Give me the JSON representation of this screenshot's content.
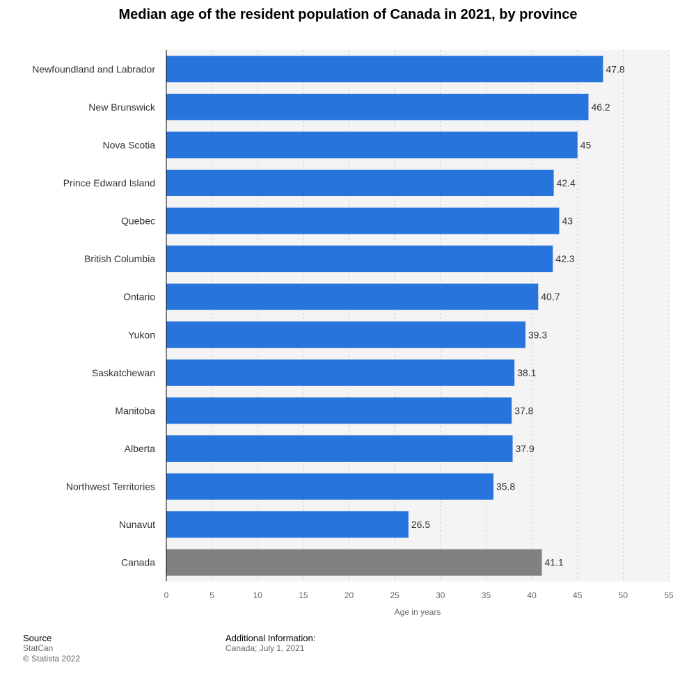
{
  "chart_data": {
    "type": "bar",
    "orientation": "horizontal",
    "title": "Median age of the resident population of Canada in 2021, by province",
    "xlabel": "Age in years",
    "ylabel": "",
    "xlim": [
      0,
      55
    ],
    "ticks": [
      0,
      5,
      10,
      15,
      20,
      25,
      30,
      35,
      40,
      45,
      50,
      55
    ],
    "grid": true,
    "categories": [
      "Newfoundland and Labrador",
      "New Brunswick",
      "Nova Scotia",
      "Prince Edward Island",
      "Quebec",
      "British Columbia",
      "Ontario",
      "Yukon",
      "Saskatchewan",
      "Manitoba",
      "Alberta",
      "Northwest Territories",
      "Nunavut",
      "Canada"
    ],
    "values": [
      47.8,
      46.2,
      45,
      42.4,
      43,
      42.3,
      40.7,
      39.3,
      38.1,
      37.8,
      37.9,
      35.8,
      26.5,
      41.1
    ],
    "value_labels": [
      "47.8",
      "46.2",
      "45",
      "42.4",
      "43",
      "42.3",
      "40.7",
      "39.3",
      "38.1",
      "37.8",
      "37.9",
      "35.8",
      "26.5",
      "41.1"
    ],
    "highlight_index": 13
  },
  "colors": {
    "bar": "#2774dd",
    "highlight": "#808080",
    "plot_background": "#f4f4f4",
    "grid": "#d0d0d0",
    "axis": "#000000",
    "text": "#333333"
  },
  "footer": {
    "source_heading": "Source",
    "source_name": "StatCan",
    "copyright": "© Statista 2022",
    "additional_heading": "Additional Information:",
    "additional_text": "Canada; July 1, 2021"
  }
}
